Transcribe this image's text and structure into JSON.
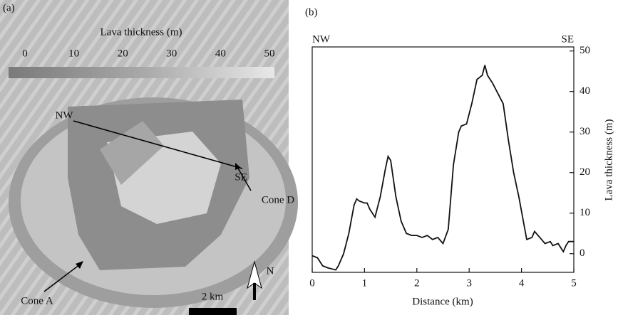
{
  "map": {
    "label": "(a)",
    "colorbar": {
      "title": "Lava thickness (m)",
      "lim": [
        0,
        50
      ],
      "ticks": [
        0,
        10,
        20,
        30,
        40,
        50
      ]
    },
    "profile_start": "NW",
    "profile_end": "SE",
    "cone_d": "Cone D",
    "cone_a": "Cone A",
    "scale_bar": "2 km",
    "north": "N"
  },
  "chart_data": {
    "type": "line",
    "panel_label": "(b)",
    "left_label": "NW",
    "right_label": "SE",
    "x_label": "Distance (km)",
    "y_label": "Lava thickness (m)",
    "y_axis_side": "right",
    "xlim": [
      0,
      5
    ],
    "xticks": [
      0,
      1,
      2,
      3,
      4,
      5
    ],
    "ylim": [
      -4.6,
      51
    ],
    "yticks": [
      0,
      10,
      20,
      30,
      40,
      50
    ],
    "series": [
      {
        "color": "#111111",
        "x": [
          0,
          0.1,
          0.2,
          0.3,
          0.45,
          0.5,
          0.6,
          0.7,
          0.8,
          0.85,
          0.9,
          1.0,
          1.05,
          1.1,
          1.2,
          1.3,
          1.4,
          1.45,
          1.5,
          1.6,
          1.7,
          1.8,
          1.9,
          2.0,
          2.1,
          2.2,
          2.3,
          2.4,
          2.5,
          2.6,
          2.7,
          2.8,
          2.85,
          2.95,
          3.05,
          3.15,
          3.25,
          3.3,
          3.35,
          3.45,
          3.55,
          3.65,
          3.75,
          3.85,
          3.95,
          4.05,
          4.1,
          4.2,
          4.25,
          4.35,
          4.45,
          4.55,
          4.6,
          4.7,
          4.8,
          4.85,
          4.9,
          5.0
        ],
        "values": [
          -0.5,
          -1,
          -3,
          -3.5,
          -4,
          -3,
          0,
          5,
          12,
          13.5,
          13,
          12.5,
          12.5,
          11,
          9,
          14,
          21,
          24,
          23,
          14,
          8,
          5,
          4.5,
          4.5,
          4,
          4.5,
          3.5,
          4,
          2.5,
          6,
          22,
          30,
          31.5,
          32,
          37,
          43,
          44,
          46.5,
          44,
          42,
          39.5,
          37,
          28,
          20,
          14,
          7,
          3.5,
          4,
          5.5,
          4,
          2.5,
          3,
          2,
          2.5,
          0.5,
          2,
          3,
          3
        ]
      }
    ]
  }
}
